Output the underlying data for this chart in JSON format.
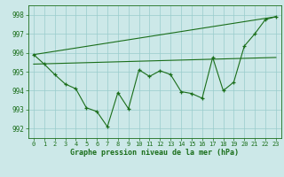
{
  "line1_x": [
    0,
    1,
    2,
    3,
    4,
    5,
    6,
    7,
    8,
    9,
    10,
    11,
    12,
    13,
    14,
    15,
    16,
    17,
    18,
    19,
    20,
    21,
    22,
    23
  ],
  "line1_y": [
    995.9,
    995.4,
    994.85,
    994.35,
    994.1,
    993.1,
    992.9,
    992.1,
    993.9,
    993.05,
    995.1,
    994.75,
    995.05,
    994.85,
    993.95,
    993.85,
    993.6,
    995.75,
    994.0,
    994.45,
    996.35,
    997.0,
    997.75,
    997.9
  ],
  "line2_x": [
    0,
    23
  ],
  "line2_y": [
    995.9,
    997.9
  ],
  "line3_x": [
    0,
    23
  ],
  "line3_y": [
    995.4,
    995.75
  ],
  "line_color": "#1a6e1a",
  "bg_color": "#cce8e8",
  "grid_color": "#99cccc",
  "xlabel": "Graphe pression niveau de la mer (hPa)",
  "ylim": [
    991.5,
    998.5
  ],
  "xlim": [
    -0.5,
    23.5
  ],
  "yticks": [
    992,
    993,
    994,
    995,
    996,
    997,
    998
  ],
  "xticks": [
    0,
    1,
    2,
    3,
    4,
    5,
    6,
    7,
    8,
    9,
    10,
    11,
    12,
    13,
    14,
    15,
    16,
    17,
    18,
    19,
    20,
    21,
    22,
    23
  ]
}
